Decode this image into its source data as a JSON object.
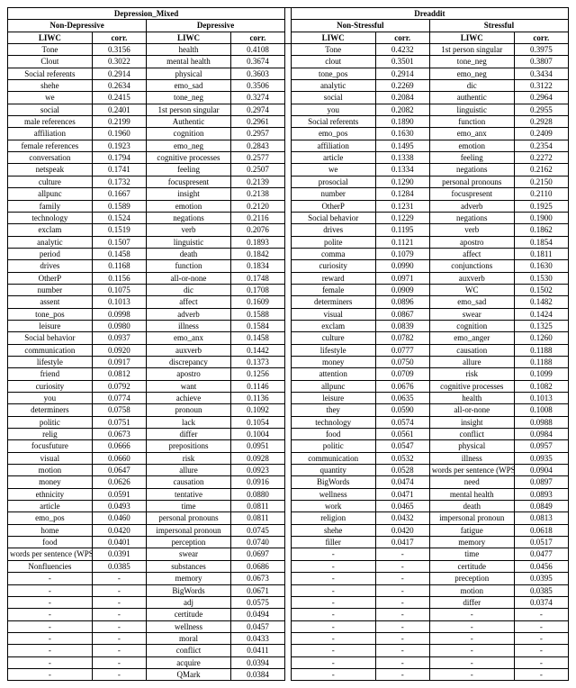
{
  "datasets": {
    "left": "Depression_Mixed",
    "right": "Dreaddit"
  },
  "subheaders": {
    "left_a": "Non-Depressive",
    "left_b": "Depressive",
    "right_a": "Non-Stressful",
    "right_b": "Stressful"
  },
  "col_labels": {
    "liwc": "LIWC",
    "corr": "corr."
  },
  "rows": [
    {
      "a": {
        "l": "Tone",
        "c": "0.3156"
      },
      "b": {
        "l": "health",
        "c": "0.4108"
      },
      "c": {
        "l": "Tone",
        "c": "0.4232"
      },
      "d": {
        "l": "1st person singular",
        "c": "0.3975"
      }
    },
    {
      "a": {
        "l": "Clout",
        "c": "0.3022"
      },
      "b": {
        "l": "mental health",
        "c": "0.3674"
      },
      "c": {
        "l": "clout",
        "c": "0.3501"
      },
      "d": {
        "l": "tone_neg",
        "c": "0.3807"
      }
    },
    {
      "a": {
        "l": "Social referents",
        "c": "0.2914"
      },
      "b": {
        "l": "physical",
        "c": "0.3603"
      },
      "c": {
        "l": "tone_pos",
        "c": "0.2914"
      },
      "d": {
        "l": "emo_neg",
        "c": "0.3434"
      }
    },
    {
      "a": {
        "l": "shehe",
        "c": "0.2634"
      },
      "b": {
        "l": "emo_sad",
        "c": "0.3506"
      },
      "c": {
        "l": "analytic",
        "c": "0.2269"
      },
      "d": {
        "l": "dic",
        "c": "0.3122"
      }
    },
    {
      "a": {
        "l": "we",
        "c": "0.2415"
      },
      "b": {
        "l": "tone_neg",
        "c": "0.3274"
      },
      "c": {
        "l": "social",
        "c": "0.2084"
      },
      "d": {
        "l": "authentic",
        "c": "0.2964"
      }
    },
    {
      "a": {
        "l": "social",
        "c": "0.2401"
      },
      "b": {
        "l": "1st person singular",
        "c": "0.2974"
      },
      "c": {
        "l": "you",
        "c": "0.2082"
      },
      "d": {
        "l": "linguistic",
        "c": "0.2955"
      }
    },
    {
      "a": {
        "l": "male references",
        "c": "0.2199"
      },
      "b": {
        "l": "Authentic",
        "c": "0.2961"
      },
      "c": {
        "l": "Social referents",
        "c": "0.1890"
      },
      "d": {
        "l": "function",
        "c": "0.2928"
      }
    },
    {
      "a": {
        "l": "affiliation",
        "c": "0.1960"
      },
      "b": {
        "l": "cognition",
        "c": "0.2957"
      },
      "c": {
        "l": "emo_pos",
        "c": "0.1630"
      },
      "d": {
        "l": "emo_anx",
        "c": "0.2409"
      }
    },
    {
      "a": {
        "l": "female references",
        "c": "0.1923"
      },
      "b": {
        "l": "emo_neg",
        "c": "0.2843"
      },
      "c": {
        "l": "affiliation",
        "c": "0.1495"
      },
      "d": {
        "l": "emotion",
        "c": "0.2354"
      }
    },
    {
      "a": {
        "l": "conversation",
        "c": "0.1794"
      },
      "b": {
        "l": "cognitive processes",
        "c": "0.2577"
      },
      "c": {
        "l": "article",
        "c": "0.1338"
      },
      "d": {
        "l": "feeling",
        "c": "0.2272"
      }
    },
    {
      "a": {
        "l": "netspeak",
        "c": "0.1741"
      },
      "b": {
        "l": "feeling",
        "c": "0.2507"
      },
      "c": {
        "l": "we",
        "c": "0.1334"
      },
      "d": {
        "l": "negations",
        "c": "0.2162"
      }
    },
    {
      "a": {
        "l": "culture",
        "c": "0.1732"
      },
      "b": {
        "l": "focuspresent",
        "c": "0.2139"
      },
      "c": {
        "l": "prosocial",
        "c": "0.1290"
      },
      "d": {
        "l": "personal pronouns",
        "c": "0.2150"
      }
    },
    {
      "a": {
        "l": "allpunc",
        "c": "0.1667"
      },
      "b": {
        "l": "insight",
        "c": "0.2138"
      },
      "c": {
        "l": "number",
        "c": "0.1284"
      },
      "d": {
        "l": "focuspresent",
        "c": "0.2110"
      }
    },
    {
      "a": {
        "l": "family",
        "c": "0.1589"
      },
      "b": {
        "l": "emotion",
        "c": "0.2120"
      },
      "c": {
        "l": "OtherP",
        "c": "0.1231"
      },
      "d": {
        "l": "adverb",
        "c": "0.1925"
      }
    },
    {
      "a": {
        "l": "technology",
        "c": "0.1524"
      },
      "b": {
        "l": "negations",
        "c": "0.2116"
      },
      "c": {
        "l": "Social behavior",
        "c": "0.1229"
      },
      "d": {
        "l": "negations",
        "c": "0.1900"
      }
    },
    {
      "a": {
        "l": "exclam",
        "c": "0.1519"
      },
      "b": {
        "l": "verb",
        "c": "0.2076"
      },
      "c": {
        "l": "drives",
        "c": "0.1195"
      },
      "d": {
        "l": "verb",
        "c": "0.1862"
      }
    },
    {
      "a": {
        "l": "analytic",
        "c": "0.1507"
      },
      "b": {
        "l": "linguistic",
        "c": "0.1893"
      },
      "c": {
        "l": "polite",
        "c": "0.1121"
      },
      "d": {
        "l": "apostro",
        "c": "0.1854"
      }
    },
    {
      "a": {
        "l": "period",
        "c": "0.1458"
      },
      "b": {
        "l": "death",
        "c": "0.1842"
      },
      "c": {
        "l": "comma",
        "c": "0.1079"
      },
      "d": {
        "l": "affect",
        "c": "0.1811"
      }
    },
    {
      "a": {
        "l": "drives",
        "c": "0.1168"
      },
      "b": {
        "l": "function",
        "c": "0.1834"
      },
      "c": {
        "l": "curiosity",
        "c": "0.0990"
      },
      "d": {
        "l": "conjunctions",
        "c": "0.1630"
      }
    },
    {
      "a": {
        "l": "OtherP",
        "c": "0.1156"
      },
      "b": {
        "l": "all-or-none",
        "c": "0.1748"
      },
      "c": {
        "l": "reward",
        "c": "0.0971"
      },
      "d": {
        "l": "auxverb",
        "c": "0.1530"
      }
    },
    {
      "a": {
        "l": "number",
        "c": "0.1075"
      },
      "b": {
        "l": "dic",
        "c": "0.1708"
      },
      "c": {
        "l": "female",
        "c": "0.0909"
      },
      "d": {
        "l": "WC",
        "c": "0.1502"
      }
    },
    {
      "a": {
        "l": "assent",
        "c": "0.1013"
      },
      "b": {
        "l": "affect",
        "c": "0.1609"
      },
      "c": {
        "l": "determiners",
        "c": "0.0896"
      },
      "d": {
        "l": "emo_sad",
        "c": "0.1482"
      }
    },
    {
      "a": {
        "l": "tone_pos",
        "c": "0.0998"
      },
      "b": {
        "l": "adverb",
        "c": "0.1588"
      },
      "c": {
        "l": "visual",
        "c": "0.0867"
      },
      "d": {
        "l": "swear",
        "c": "0.1424"
      }
    },
    {
      "a": {
        "l": "leisure",
        "c": "0.0980"
      },
      "b": {
        "l": "illness",
        "c": "0.1584"
      },
      "c": {
        "l": "exclam",
        "c": "0.0839"
      },
      "d": {
        "l": "cognition",
        "c": "0.1325"
      }
    },
    {
      "a": {
        "l": "Social behavior",
        "c": "0.0937"
      },
      "b": {
        "l": "emo_anx",
        "c": "0.1458"
      },
      "c": {
        "l": "culture",
        "c": "0.0782"
      },
      "d": {
        "l": "emo_anger",
        "c": "0.1260"
      }
    },
    {
      "a": {
        "l": "communication",
        "c": "0.0920"
      },
      "b": {
        "l": "auxverb",
        "c": "0.1442"
      },
      "c": {
        "l": "lifestyle",
        "c": "0.0777"
      },
      "d": {
        "l": "causation",
        "c": "0.1188"
      }
    },
    {
      "a": {
        "l": "lifestyle",
        "c": "0.0917"
      },
      "b": {
        "l": "discrepancy",
        "c": "0.1373"
      },
      "c": {
        "l": "money",
        "c": "0.0750"
      },
      "d": {
        "l": "allure",
        "c": "0.1188"
      }
    },
    {
      "a": {
        "l": "friend",
        "c": "0.0812"
      },
      "b": {
        "l": "apostro",
        "c": "0.1256"
      },
      "c": {
        "l": "attention",
        "c": "0.0709"
      },
      "d": {
        "l": "risk",
        "c": "0.1099"
      }
    },
    {
      "a": {
        "l": "curiosity",
        "c": "0.0792"
      },
      "b": {
        "l": "want",
        "c": "0.1146"
      },
      "c": {
        "l": "allpunc",
        "c": "0.0676"
      },
      "d": {
        "l": "cognitive processes",
        "c": "0.1082"
      }
    },
    {
      "a": {
        "l": "you",
        "c": "0.0774"
      },
      "b": {
        "l": "achieve",
        "c": "0.1136"
      },
      "c": {
        "l": "leisure",
        "c": "0.0635"
      },
      "d": {
        "l": "health",
        "c": "0.1013"
      }
    },
    {
      "a": {
        "l": "determiners",
        "c": "0.0758"
      },
      "b": {
        "l": "pronoun",
        "c": "0.1092"
      },
      "c": {
        "l": "they",
        "c": "0.0590"
      },
      "d": {
        "l": "all-or-none",
        "c": "0.1008"
      }
    },
    {
      "a": {
        "l": "politic",
        "c": "0.0751"
      },
      "b": {
        "l": "lack",
        "c": "0.1054"
      },
      "c": {
        "l": "technology",
        "c": "0.0574"
      },
      "d": {
        "l": "insight",
        "c": "0.0988"
      }
    },
    {
      "a": {
        "l": "relig",
        "c": "0.0673"
      },
      "b": {
        "l": "differ",
        "c": "0.1004"
      },
      "c": {
        "l": "food",
        "c": "0.0561"
      },
      "d": {
        "l": "conflict",
        "c": "0.0984"
      }
    },
    {
      "a": {
        "l": "focusfuture",
        "c": "0.0666"
      },
      "b": {
        "l": "prepositions",
        "c": "0.0951"
      },
      "c": {
        "l": "politic",
        "c": "0.0547"
      },
      "d": {
        "l": "physical",
        "c": "0.0957"
      }
    },
    {
      "a": {
        "l": "visual",
        "c": "0.0660"
      },
      "b": {
        "l": "risk",
        "c": "0.0928"
      },
      "c": {
        "l": "communication",
        "c": "0.0532"
      },
      "d": {
        "l": "illness",
        "c": "0.0935"
      }
    },
    {
      "a": {
        "l": "motion",
        "c": "0.0647"
      },
      "b": {
        "l": "allure",
        "c": "0.0923"
      },
      "c": {
        "l": "quantity",
        "c": "0.0528"
      },
      "d": {
        "l": "words per sentence (WPS)",
        "c": "0.0904"
      }
    },
    {
      "a": {
        "l": "money",
        "c": "0.0626"
      },
      "b": {
        "l": "causation",
        "c": "0.0916"
      },
      "c": {
        "l": "BigWords",
        "c": "0.0474"
      },
      "d": {
        "l": "need",
        "c": "0.0897"
      }
    },
    {
      "a": {
        "l": "ethnicity",
        "c": "0.0591"
      },
      "b": {
        "l": "tentative",
        "c": "0.0880"
      },
      "c": {
        "l": "wellness",
        "c": "0.0471"
      },
      "d": {
        "l": "mental health",
        "c": "0.0893"
      }
    },
    {
      "a": {
        "l": "article",
        "c": "0.0493"
      },
      "b": {
        "l": "time",
        "c": "0.0811"
      },
      "c": {
        "l": "work",
        "c": "0.0465"
      },
      "d": {
        "l": "death",
        "c": "0.0849"
      }
    },
    {
      "a": {
        "l": "emo_pos",
        "c": "0.0460"
      },
      "b": {
        "l": "personal pronouns",
        "c": "0.0811"
      },
      "c": {
        "l": "religion",
        "c": "0.0432"
      },
      "d": {
        "l": "impersonal pronoun",
        "c": "0.0813"
      }
    },
    {
      "a": {
        "l": "home",
        "c": "0.0420"
      },
      "b": {
        "l": "impersonal pronoun",
        "c": "0.0745"
      },
      "c": {
        "l": "shehe",
        "c": "0.0420"
      },
      "d": {
        "l": "fatigue",
        "c": "0.0618"
      }
    },
    {
      "a": {
        "l": "food",
        "c": "0.0401"
      },
      "b": {
        "l": "perception",
        "c": "0.0740"
      },
      "c": {
        "l": "filler",
        "c": "0.0417"
      },
      "d": {
        "l": "memory",
        "c": "0.0517"
      }
    },
    {
      "a": {
        "l": "words per sentence (WPS)",
        "c": "0.0391"
      },
      "b": {
        "l": "swear",
        "c": "0.0697"
      },
      "c": {
        "l": "-",
        "c": "-"
      },
      "d": {
        "l": "time",
        "c": "0.0477"
      }
    },
    {
      "a": {
        "l": "Nonfluencies",
        "c": "0.0385"
      },
      "b": {
        "l": "substances",
        "c": "0.0686"
      },
      "c": {
        "l": "-",
        "c": "-"
      },
      "d": {
        "l": "certitude",
        "c": "0.0456"
      }
    },
    {
      "a": {
        "l": "-",
        "c": "-"
      },
      "b": {
        "l": "memory",
        "c": "0.0673"
      },
      "c": {
        "l": "-",
        "c": "-"
      },
      "d": {
        "l": "preception",
        "c": "0.0395"
      }
    },
    {
      "a": {
        "l": "-",
        "c": "-"
      },
      "b": {
        "l": "BigWords",
        "c": "0.0671"
      },
      "c": {
        "l": "-",
        "c": "-"
      },
      "d": {
        "l": "motion",
        "c": "0.0385"
      }
    },
    {
      "a": {
        "l": "-",
        "c": "-"
      },
      "b": {
        "l": "adj",
        "c": "0.0575"
      },
      "c": {
        "l": "-",
        "c": "-"
      },
      "d": {
        "l": "differ",
        "c": "0.0374"
      }
    },
    {
      "a": {
        "l": "-",
        "c": "-"
      },
      "b": {
        "l": "certitude",
        "c": "0.0494"
      },
      "c": {
        "l": "-",
        "c": "-"
      },
      "d": {
        "l": "-",
        "c": "-"
      }
    },
    {
      "a": {
        "l": "-",
        "c": "-"
      },
      "b": {
        "l": "wellness",
        "c": "0.0457"
      },
      "c": {
        "l": "-",
        "c": "-"
      },
      "d": {
        "l": "-",
        "c": "-"
      }
    },
    {
      "a": {
        "l": "-",
        "c": "-"
      },
      "b": {
        "l": "moral",
        "c": "0.0433"
      },
      "c": {
        "l": "-",
        "c": "-"
      },
      "d": {
        "l": "-",
        "c": "-"
      }
    },
    {
      "a": {
        "l": "-",
        "c": "-"
      },
      "b": {
        "l": "conflict",
        "c": "0.0411"
      },
      "c": {
        "l": "-",
        "c": "-"
      },
      "d": {
        "l": "-",
        "c": "-"
      }
    },
    {
      "a": {
        "l": "-",
        "c": "-"
      },
      "b": {
        "l": "acquire",
        "c": "0.0394"
      },
      "c": {
        "l": "-",
        "c": "-"
      },
      "d": {
        "l": "-",
        "c": "-"
      }
    },
    {
      "a": {
        "l": "-",
        "c": "-"
      },
      "b": {
        "l": "QMark",
        "c": "0.0384"
      },
      "c": {
        "l": "-",
        "c": "-"
      },
      "d": {
        "l": "-",
        "c": "-"
      }
    }
  ]
}
